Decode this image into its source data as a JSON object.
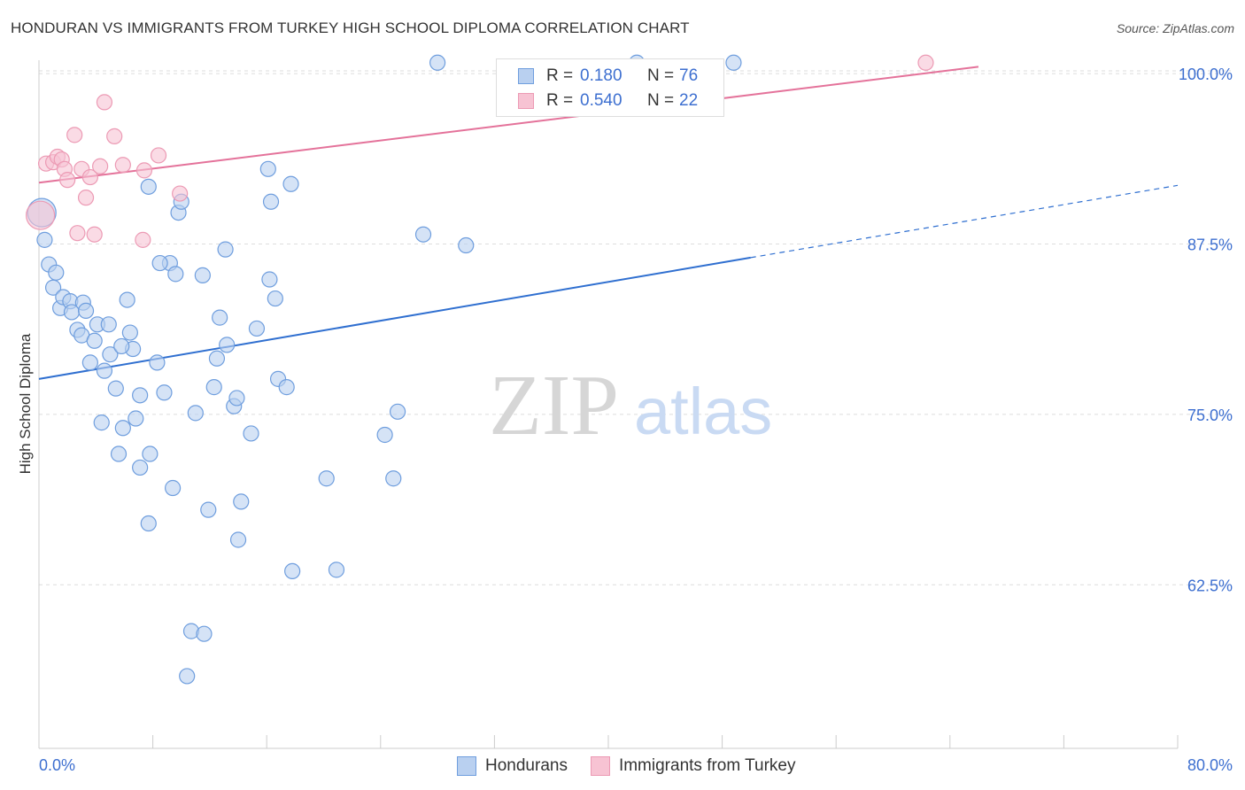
{
  "header": {
    "title": "HONDURAN VS IMMIGRANTS FROM TURKEY HIGH SCHOOL DIPLOMA CORRELATION CHART",
    "source": "Source: ZipAtlas.com"
  },
  "watermark": {
    "zip": "ZIP",
    "atlas": "atlas"
  },
  "legend_top": {
    "rows": [
      {
        "r_label": "R =",
        "r_value": "0.180",
        "n_label": "N =",
        "n_value": "76"
      },
      {
        "r_label": "R =",
        "r_value": "0.540",
        "n_label": "N =",
        "n_value": "22"
      }
    ]
  },
  "legend_bottom": {
    "series1": "Hondurans",
    "series2": "Immigrants from Turkey"
  },
  "colors": {
    "blue_fill": "#b9d0f0",
    "blue_stroke": "#6f9ede",
    "blue_line": "#2f6fd0",
    "pink_fill": "#f7c3d3",
    "pink_stroke": "#ec9ab4",
    "pink_line": "#e4729a",
    "tick_text": "#3d6fd0",
    "grid": "#dddddd"
  },
  "chart_data": {
    "type": "scatter",
    "title": "HONDURAN VS IMMIGRANTS FROM TURKEY HIGH SCHOOL DIPLOMA CORRELATION CHART",
    "xlabel": "",
    "ylabel": "High School Diploma",
    "xlim": [
      0,
      80
    ],
    "ylim": [
      50.5,
      101.5
    ],
    "x_tick_labels": [
      "0.0%",
      "80.0%"
    ],
    "y_ticks": [
      62.5,
      75.0,
      87.5,
      100.0
    ],
    "y_tick_labels": [
      "62.5%",
      "75.0%",
      "87.5%",
      "100.0%"
    ],
    "series": [
      {
        "name": "Hondurans",
        "r": 0.18,
        "n": 76,
        "trend": {
          "x0": 0,
          "y0": 77.6,
          "x1": 50,
          "y1": 86.5,
          "dashed_x1": 80,
          "dashed_y1": 91.8
        },
        "points": [
          {
            "x": 0.2,
            "y": 89.8,
            "big": true
          },
          {
            "x": 0.4,
            "y": 87.8
          },
          {
            "x": 0.7,
            "y": 86.0
          },
          {
            "x": 1.2,
            "y": 85.4
          },
          {
            "x": 1.0,
            "y": 84.3
          },
          {
            "x": 1.5,
            "y": 82.8
          },
          {
            "x": 1.7,
            "y": 83.6
          },
          {
            "x": 2.2,
            "y": 83.3
          },
          {
            "x": 2.3,
            "y": 82.5
          },
          {
            "x": 3.1,
            "y": 83.2
          },
          {
            "x": 3.3,
            "y": 82.6
          },
          {
            "x": 4.1,
            "y": 81.6
          },
          {
            "x": 2.7,
            "y": 81.2
          },
          {
            "x": 3.0,
            "y": 80.8
          },
          {
            "x": 3.9,
            "y": 80.4
          },
          {
            "x": 4.9,
            "y": 81.6
          },
          {
            "x": 6.2,
            "y": 83.4
          },
          {
            "x": 6.4,
            "y": 81.0
          },
          {
            "x": 6.6,
            "y": 79.8
          },
          {
            "x": 5.0,
            "y": 79.4
          },
          {
            "x": 3.6,
            "y": 78.8
          },
          {
            "x": 4.6,
            "y": 78.2
          },
          {
            "x": 8.3,
            "y": 78.8
          },
          {
            "x": 5.4,
            "y": 76.9
          },
          {
            "x": 7.1,
            "y": 76.4
          },
          {
            "x": 8.8,
            "y": 76.6
          },
          {
            "x": 4.4,
            "y": 74.4
          },
          {
            "x": 6.8,
            "y": 74.7
          },
          {
            "x": 5.9,
            "y": 74.0
          },
          {
            "x": 5.6,
            "y": 72.1
          },
          {
            "x": 7.8,
            "y": 72.1
          },
          {
            "x": 7.1,
            "y": 71.1
          },
          {
            "x": 9.4,
            "y": 69.6
          },
          {
            "x": 7.7,
            "y": 67.0
          },
          {
            "x": 9.2,
            "y": 86.1
          },
          {
            "x": 8.5,
            "y": 86.1
          },
          {
            "x": 9.6,
            "y": 85.3
          },
          {
            "x": 7.7,
            "y": 91.7
          },
          {
            "x": 9.8,
            "y": 89.8
          },
          {
            "x": 10.0,
            "y": 90.6
          },
          {
            "x": 11.5,
            "y": 85.2
          },
          {
            "x": 13.1,
            "y": 87.1
          },
          {
            "x": 12.7,
            "y": 82.1
          },
          {
            "x": 13.2,
            "y": 80.1
          },
          {
            "x": 12.5,
            "y": 79.1
          },
          {
            "x": 15.3,
            "y": 81.3
          },
          {
            "x": 16.1,
            "y": 93.0
          },
          {
            "x": 16.3,
            "y": 90.6
          },
          {
            "x": 17.7,
            "y": 91.9
          },
          {
            "x": 16.2,
            "y": 84.9
          },
          {
            "x": 16.6,
            "y": 83.5
          },
          {
            "x": 12.3,
            "y": 77.0
          },
          {
            "x": 11.0,
            "y": 75.1
          },
          {
            "x": 13.7,
            "y": 75.6
          },
          {
            "x": 13.9,
            "y": 76.2
          },
          {
            "x": 14.9,
            "y": 73.6
          },
          {
            "x": 16.8,
            "y": 77.6
          },
          {
            "x": 17.4,
            "y": 77.0
          },
          {
            "x": 11.9,
            "y": 68.0
          },
          {
            "x": 14.2,
            "y": 68.6
          },
          {
            "x": 14.0,
            "y": 65.8
          },
          {
            "x": 17.8,
            "y": 63.5
          },
          {
            "x": 20.2,
            "y": 70.3
          },
          {
            "x": 20.9,
            "y": 63.6
          },
          {
            "x": 24.3,
            "y": 73.5
          },
          {
            "x": 25.2,
            "y": 75.2
          },
          {
            "x": 24.9,
            "y": 70.3
          },
          {
            "x": 27.0,
            "y": 88.2
          },
          {
            "x": 30.0,
            "y": 87.4
          },
          {
            "x": 10.7,
            "y": 59.1
          },
          {
            "x": 11.6,
            "y": 58.9
          },
          {
            "x": 10.4,
            "y": 55.8
          },
          {
            "x": 28.0,
            "y": 100.8
          },
          {
            "x": 42.0,
            "y": 100.8
          },
          {
            "x": 48.8,
            "y": 100.8
          },
          {
            "x": 5.8,
            "y": 80.0
          }
        ]
      },
      {
        "name": "Immigrants from Turkey",
        "r": 0.54,
        "n": 22,
        "trend": {
          "x0": 0,
          "y0": 92.0,
          "x1": 66,
          "y1": 100.5
        },
        "points": [
          {
            "x": 0.1,
            "y": 89.6,
            "big": true
          },
          {
            "x": 0.5,
            "y": 93.4
          },
          {
            "x": 1.0,
            "y": 93.5
          },
          {
            "x": 1.3,
            "y": 93.9
          },
          {
            "x": 1.6,
            "y": 93.7
          },
          {
            "x": 1.8,
            "y": 93.0
          },
          {
            "x": 2.0,
            "y": 92.2
          },
          {
            "x": 2.5,
            "y": 95.5
          },
          {
            "x": 3.0,
            "y": 93.0
          },
          {
            "x": 3.3,
            "y": 90.9
          },
          {
            "x": 3.6,
            "y": 92.4
          },
          {
            "x": 2.7,
            "y": 88.3
          },
          {
            "x": 3.9,
            "y": 88.2
          },
          {
            "x": 4.3,
            "y": 93.2
          },
          {
            "x": 4.6,
            "y": 97.9
          },
          {
            "x": 5.3,
            "y": 95.4
          },
          {
            "x": 5.9,
            "y": 93.3
          },
          {
            "x": 7.4,
            "y": 92.9
          },
          {
            "x": 7.3,
            "y": 87.8
          },
          {
            "x": 8.4,
            "y": 94.0
          },
          {
            "x": 9.9,
            "y": 91.2
          },
          {
            "x": 62.3,
            "y": 100.8
          }
        ]
      }
    ]
  }
}
